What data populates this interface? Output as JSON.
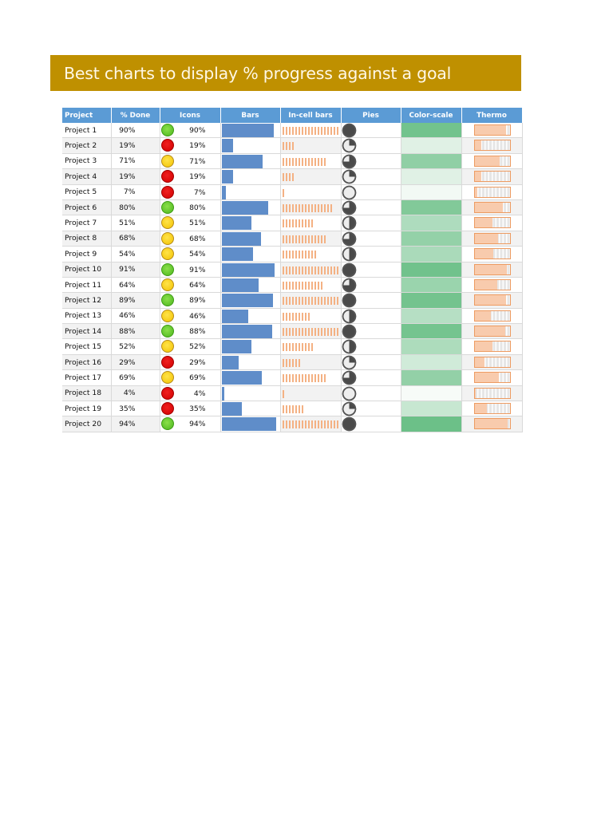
{
  "title": "Best charts to display % progress against a goal",
  "colors": {
    "banner": "#BF9000",
    "header": "#5B9BD5",
    "bar": "#5F8DC9",
    "incell_bar": "#F4B183",
    "thermo_fill": "#F8CBAD",
    "thermo_border": "#ED9B61",
    "icon_green": "#5CC52A",
    "icon_yellow": "#F5CC10",
    "icon_red": "#DD0A0A",
    "scale_low": "#F7FBF8",
    "scale_high": "#6CC088"
  },
  "table": {
    "headers": [
      "Project",
      "% Done",
      "Icons",
      "Bars",
      "In-cell bars",
      "Pies",
      "Color-scale",
      "Thermo"
    ],
    "rows": [
      {
        "project": "Project 1",
        "pct": "90%",
        "value": 90,
        "icon": "green",
        "icon_label": "90%"
      },
      {
        "project": "Project 2",
        "pct": "19%",
        "value": 19,
        "icon": "red",
        "icon_label": "19%"
      },
      {
        "project": "Project 3",
        "pct": "71%",
        "value": 71,
        "icon": "yellow",
        "icon_label": "71%"
      },
      {
        "project": "Project 4",
        "pct": "19%",
        "value": 19,
        "icon": "red",
        "icon_label": "19%"
      },
      {
        "project": "Project 5",
        "pct": "7%",
        "value": 7,
        "icon": "red",
        "icon_label": "7%"
      },
      {
        "project": "Project 6",
        "pct": "80%",
        "value": 80,
        "icon": "green",
        "icon_label": "80%"
      },
      {
        "project": "Project 7",
        "pct": "51%",
        "value": 51,
        "icon": "yellow",
        "icon_label": "51%"
      },
      {
        "project": "Project 8",
        "pct": "68%",
        "value": 68,
        "icon": "yellow",
        "icon_label": "68%"
      },
      {
        "project": "Project 9",
        "pct": "54%",
        "value": 54,
        "icon": "yellow",
        "icon_label": "54%"
      },
      {
        "project": "Project 10",
        "pct": "91%",
        "value": 91,
        "icon": "green",
        "icon_label": "91%"
      },
      {
        "project": "Project 11",
        "pct": "64%",
        "value": 64,
        "icon": "yellow",
        "icon_label": "64%"
      },
      {
        "project": "Project 12",
        "pct": "89%",
        "value": 89,
        "icon": "green",
        "icon_label": "89%"
      },
      {
        "project": "Project 13",
        "pct": "46%",
        "value": 46,
        "icon": "yellow",
        "icon_label": "46%"
      },
      {
        "project": "Project 14",
        "pct": "88%",
        "value": 88,
        "icon": "green",
        "icon_label": "88%"
      },
      {
        "project": "Project 15",
        "pct": "52%",
        "value": 52,
        "icon": "yellow",
        "icon_label": "52%"
      },
      {
        "project": "Project 16",
        "pct": "29%",
        "value": 29,
        "icon": "red",
        "icon_label": "29%"
      },
      {
        "project": "Project 17",
        "pct": "69%",
        "value": 69,
        "icon": "yellow",
        "icon_label": "69%"
      },
      {
        "project": "Project 18",
        "pct": "4%",
        "value": 4,
        "icon": "red",
        "icon_label": "4%"
      },
      {
        "project": "Project 19",
        "pct": "35%",
        "value": 35,
        "icon": "red",
        "icon_label": "35%"
      },
      {
        "project": "Project 20",
        "pct": "94%",
        "value": 94,
        "icon": "green",
        "icon_label": "94%"
      }
    ]
  },
  "chart_data": {
    "type": "table",
    "title": "Best charts to display % progress against a goal",
    "columns": [
      "Project",
      "% Done",
      "Icons",
      "Bars",
      "In-cell bars",
      "Pies",
      "Color-scale",
      "Thermo"
    ],
    "categories": [
      "Project 1",
      "Project 2",
      "Project 3",
      "Project 4",
      "Project 5",
      "Project 6",
      "Project 7",
      "Project 8",
      "Project 9",
      "Project 10",
      "Project 11",
      "Project 12",
      "Project 13",
      "Project 14",
      "Project 15",
      "Project 16",
      "Project 17",
      "Project 18",
      "Project 19",
      "Project 20"
    ],
    "series": [
      {
        "name": "% Done",
        "values": [
          90,
          19,
          71,
          19,
          7,
          80,
          51,
          68,
          54,
          91,
          64,
          89,
          46,
          88,
          52,
          29,
          69,
          4,
          35,
          94
        ]
      }
    ],
    "ylim": [
      0,
      100
    ]
  }
}
